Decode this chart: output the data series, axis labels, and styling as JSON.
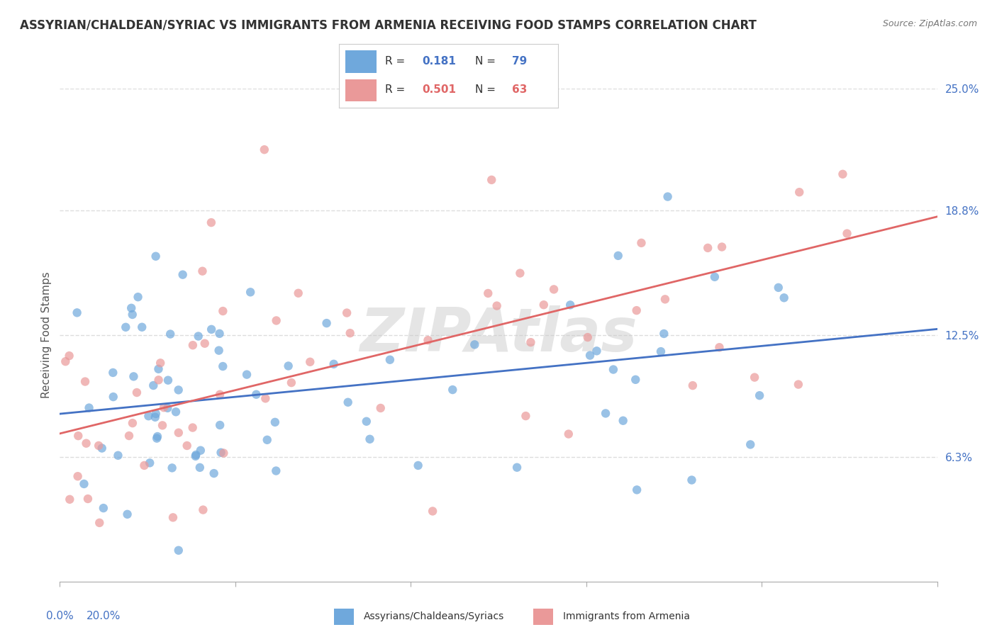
{
  "title": "ASSYRIAN/CHALDEAN/SYRIAC VS IMMIGRANTS FROM ARMENIA RECEIVING FOOD STAMPS CORRELATION CHART",
  "source": "Source: ZipAtlas.com",
  "ylabel": "Receiving Food Stamps",
  "xlim": [
    0.0,
    20.0
  ],
  "ylim": [
    0.0,
    25.0
  ],
  "yticks": [
    6.3,
    12.5,
    18.8,
    25.0
  ],
  "ytick_labels": [
    "6.3%",
    "12.5%",
    "18.8%",
    "25.0%"
  ],
  "series1": {
    "name": "Assyrians/Chaldeans/Syriacs",
    "color": "#6fa8dc",
    "R": 0.181,
    "N": 79,
    "trend_y_start": 8.5,
    "trend_y_end": 12.8
  },
  "series2": {
    "name": "Immigrants from Armenia",
    "color": "#ea9999",
    "R": 0.501,
    "N": 63,
    "trend_y_start": 7.5,
    "trend_y_end": 18.5
  },
  "watermark": "ZIPAtlas",
  "background_color": "#ffffff",
  "grid_color": "#dddddd",
  "title_fontsize": 12,
  "label_fontsize": 11,
  "tick_fontsize": 11,
  "r_color_blue": "#4472c4",
  "r_color_pink": "#e06666",
  "n_color_blue": "#4472c4",
  "n_color_pink": "#e06666"
}
